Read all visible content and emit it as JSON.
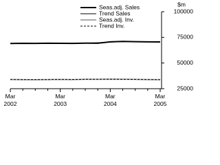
{
  "chart_data": {
    "type": "line",
    "y_unit": "$m",
    "categories": [
      "Mar 2002",
      null,
      null,
      null,
      "Mar 2003",
      null,
      null,
      null,
      "Mar 2004",
      null,
      null,
      null,
      "Mar 2005"
    ],
    "series": [
      {
        "name": "Seas.adj. Sales",
        "color": "#000000",
        "width": 2,
        "dash": false,
        "values": [
          69000,
          69200,
          69100,
          69300,
          69200,
          69100,
          69400,
          69300,
          70600,
          71000,
          70800,
          70600,
          70500
        ]
      },
      {
        "name": "Trend Sales",
        "color": "#000000",
        "width": 1,
        "dash": false,
        "values": [
          69100,
          69150,
          69200,
          69200,
          69200,
          69250,
          69400,
          69800,
          70400,
          70800,
          70800,
          70600,
          70500
        ]
      },
      {
        "name": "Seas.adj. Inv.",
        "color": "#aaaaaa",
        "width": 2,
        "dash": false,
        "values": [
          34000,
          33800,
          33700,
          33900,
          34000,
          33800,
          34200,
          34100,
          34300,
          34200,
          34100,
          33900,
          33800
        ]
      },
      {
        "name": "Trend Inv.",
        "color": "#000000",
        "width": 1,
        "dash": true,
        "values": [
          33900,
          33850,
          33850,
          33900,
          33950,
          34000,
          34100,
          34200,
          34200,
          34150,
          34000,
          33900,
          33800
        ]
      }
    ],
    "ylim": [
      25000,
      100000
    ],
    "yticks": [
      25000,
      50000,
      75000,
      100000
    ]
  }
}
